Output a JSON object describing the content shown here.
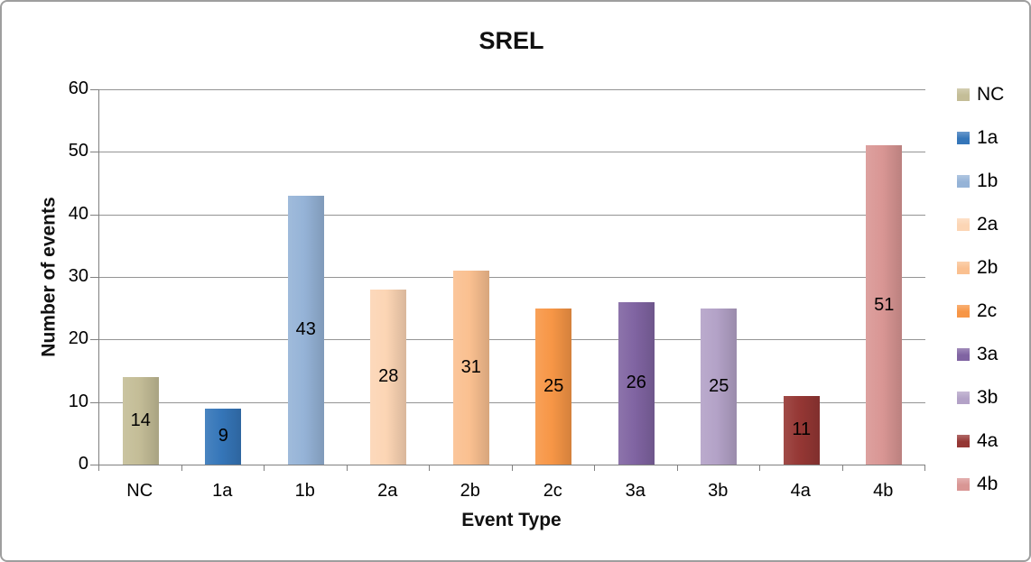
{
  "title": "SREL",
  "chart_data": {
    "type": "bar",
    "title": "SREL",
    "xlabel": "Event Type",
    "ylabel": "Number of events",
    "ylim": [
      0,
      60
    ],
    "ytick_step": 10,
    "ytick_labels": [
      "0",
      "10",
      "20",
      "30",
      "40",
      "50",
      "60"
    ],
    "grid": true,
    "legend_position": "right",
    "categories": [
      "NC",
      "1a",
      "1b",
      "2a",
      "2b",
      "2c",
      "3a",
      "3b",
      "4a",
      "4b"
    ],
    "values": [
      14,
      9,
      43,
      28,
      31,
      25,
      26,
      25,
      11,
      51
    ],
    "data_labels": [
      "14",
      "9",
      "43",
      "28",
      "31",
      "25",
      "26",
      "25",
      "11",
      "51"
    ],
    "colors": [
      "#C4BD97",
      "#3576B9",
      "#95B3D7",
      "#FCD5B4",
      "#FAC090",
      "#F79646",
      "#8064A2",
      "#B3A2C7",
      "#953734",
      "#D99694"
    ],
    "legend_items": [
      "NC",
      "1a",
      "1b",
      "2a",
      "2b",
      "2c",
      "3a",
      "3b",
      "4a",
      "4b"
    ]
  },
  "frame": {
    "border_color": "#9E9E9E",
    "gridline_color": "#949494",
    "axis_color": "#808080",
    "background": "#FFFFFF"
  }
}
